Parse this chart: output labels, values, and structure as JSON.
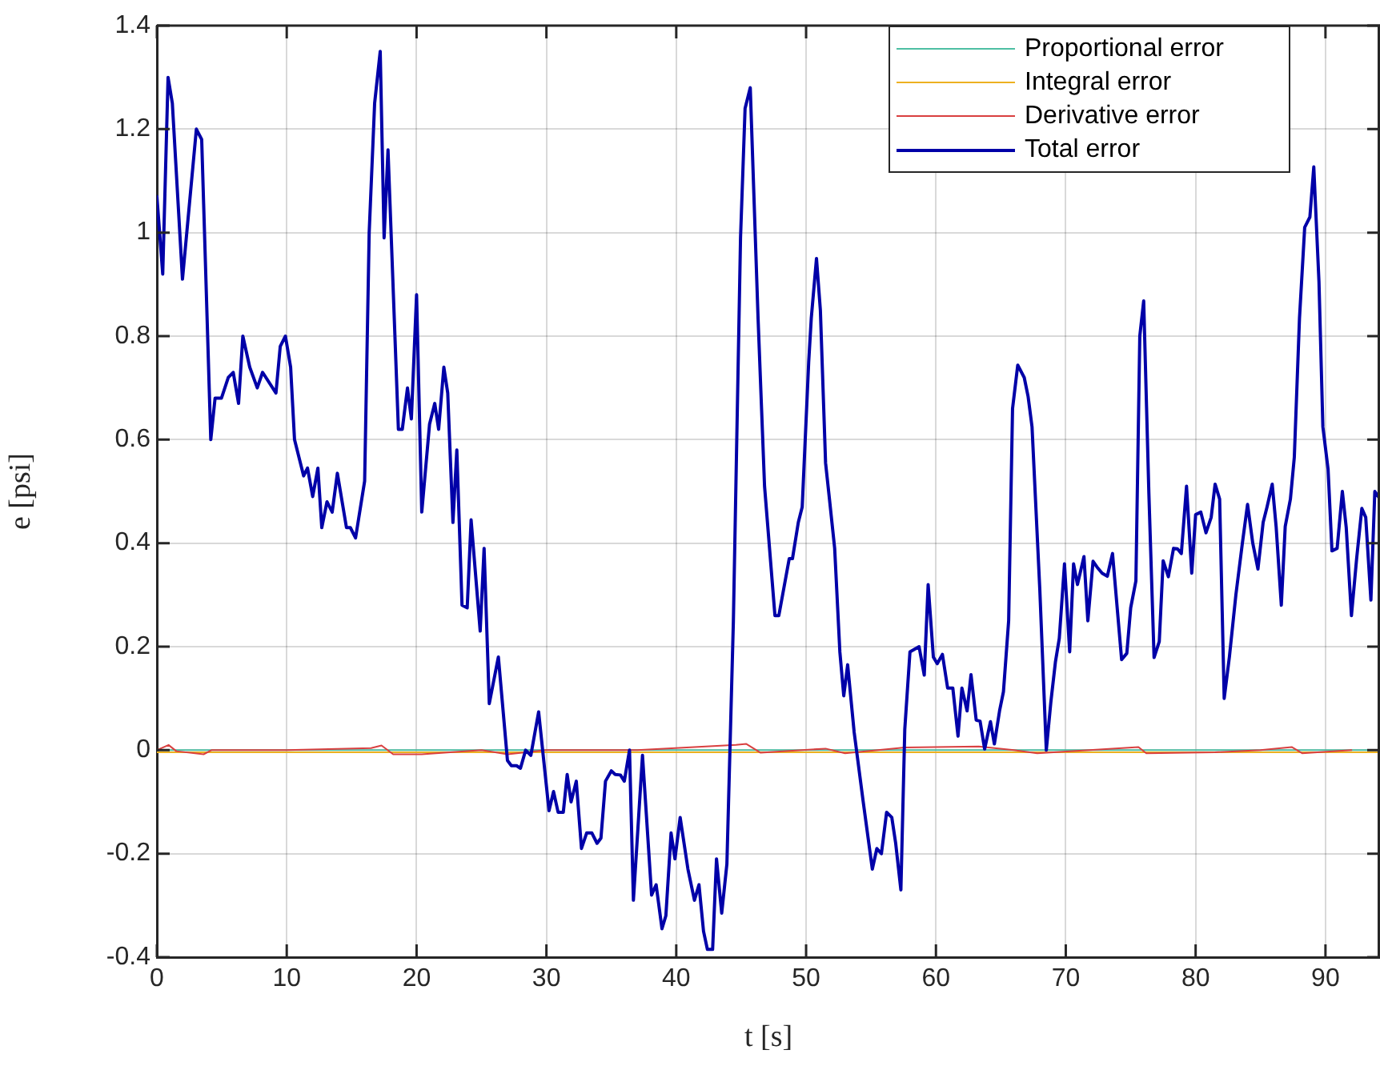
{
  "chart_data": {
    "type": "line",
    "xlabel": "t [s]",
    "ylabel": "e [psi]",
    "xlim": [
      0,
      94.2
    ],
    "xticks": [
      0,
      10,
      20,
      30,
      40,
      50,
      60,
      70,
      80,
      90
    ],
    "ylim": [
      -0.4,
      1.4
    ],
    "yticks": [
      -0.4,
      -0.2,
      0,
      0.2,
      0.4,
      0.6,
      0.8,
      1,
      1.2,
      1.4
    ],
    "grid": true,
    "legend": "top right",
    "marker": "none",
    "line_style": "solid",
    "series": [
      {
        "name": "Proportional error",
        "color": "#4dbfa3",
        "x": [
          0,
          10,
          20,
          30,
          40,
          50,
          60,
          70,
          80,
          90,
          94.2
        ],
        "values": [
          0,
          0,
          0,
          0,
          0,
          0,
          0,
          0,
          0,
          0,
          0
        ]
      },
      {
        "name": "Integral error",
        "color": "#edb120",
        "x": [
          0,
          10,
          20,
          30,
          40,
          50,
          60,
          70,
          80,
          90,
          94.2
        ],
        "values": [
          -0.004,
          -0.004,
          -0.004,
          -0.004,
          -0.004,
          -0.004,
          -0.004,
          -0.004,
          -0.004,
          -0.004,
          -0.004
        ]
      },
      {
        "name": "Derivative error",
        "color": "#d94040",
        "x": [
          0,
          0.9,
          1.5,
          3.6,
          4.2,
          10,
          16.5,
          17.3,
          18.2,
          20.4,
          25,
          27,
          30,
          37,
          44.6,
          45.4,
          46.5,
          51.5,
          53,
          57.6,
          63.3,
          66,
          67.8,
          75.6,
          76.2,
          81.5,
          85,
          87.4,
          88.2,
          92
        ],
        "values": [
          0,
          0.01,
          -0.002,
          -0.008,
          0,
          0,
          0.004,
          0.009,
          -0.008,
          -0.008,
          0,
          -0.008,
          0,
          0,
          0.01,
          0.012,
          -0.005,
          0.003,
          -0.006,
          0.005,
          0.007,
          0,
          -0.006,
          0.006,
          -0.006,
          -0.004,
          0,
          0.006,
          -0.006,
          0
        ]
      },
      {
        "name": "Total error",
        "color": "#0000a8",
        "x": [
          0,
          0.45,
          0.86,
          1.19,
          1.97,
          3.04,
          3.45,
          4.15,
          4.48,
          4.97,
          5.5,
          5.88,
          6.29,
          6.62,
          7.15,
          7.73,
          8.14,
          9.17,
          9.5,
          9.9,
          10.3,
          10.6,
          11.3,
          11.6,
          12.0,
          12.4,
          12.7,
          13.1,
          13.5,
          13.9,
          14.6,
          14.9,
          15.3,
          16.0,
          16.35,
          16.77,
          17.2,
          17.5,
          17.8,
          18.6,
          18.9,
          19.3,
          19.6,
          20.0,
          20.4,
          21.0,
          21.4,
          21.7,
          22.1,
          22.4,
          22.8,
          23.1,
          23.5,
          23.9,
          24.2,
          24.9,
          25.2,
          25.6,
          26.3,
          27.0,
          27.3,
          27.7,
          28.0,
          28.4,
          28.8,
          29.4,
          30.2,
          30.55,
          30.9,
          31.3,
          31.6,
          31.9,
          32.3,
          32.7,
          33.1,
          33.5,
          33.9,
          34.2,
          34.55,
          35.0,
          35.3,
          35.7,
          36.0,
          36.4,
          36.7,
          37.4,
          38.1,
          38.45,
          38.9,
          39.2,
          39.6,
          39.9,
          40.3,
          40.9,
          41.4,
          41.75,
          42.1,
          42.4,
          42.8,
          43.1,
          43.5,
          43.9,
          44.4,
          44.95,
          45.3,
          45.7,
          46.3,
          46.8,
          47.6,
          47.9,
          48.7,
          48.95,
          49.4,
          49.7,
          50.2,
          50.4,
          50.8,
          51.1,
          51.5,
          51.8,
          52.2,
          52.6,
          52.9,
          53.2,
          53.7,
          54.4,
          55.1,
          55.45,
          55.8,
          56.2,
          56.6,
          56.9,
          57.3,
          57.6,
          58.0,
          58.7,
          59.1,
          59.4,
          59.8,
          60.1,
          60.5,
          60.9,
          61.3,
          61.7,
          62.0,
          62.4,
          62.7,
          63.1,
          63.4,
          63.75,
          64.2,
          64.5,
          64.9,
          65.2,
          65.6,
          65.9,
          66.3,
          66.8,
          67.1,
          67.4,
          68.0,
          68.5,
          68.85,
          69.2,
          69.5,
          69.9,
          70.3,
          70.6,
          70.9,
          71.4,
          71.7,
          72.1,
          72.4,
          72.8,
          73.2,
          73.6,
          74.3,
          74.7,
          75.0,
          75.4,
          75.7,
          76.0,
          76.4,
          76.8,
          77.2,
          77.5,
          77.9,
          78.3,
          78.6,
          78.9,
          79.3,
          79.7,
          80.0,
          80.4,
          80.8,
          81.2,
          81.5,
          81.85,
          82.2,
          82.6,
          83.1,
          83.6,
          84.0,
          84.4,
          84.8,
          85.2,
          85.5,
          85.9,
          86.2,
          86.6,
          86.9,
          87.3,
          87.6,
          88.0,
          88.4,
          88.8,
          89.1,
          89.5,
          89.8,
          90.2,
          90.5,
          90.9,
          91.3,
          91.6,
          92.0,
          92.4,
          92.8,
          93.1,
          93.5,
          93.8,
          94.2
        ],
        "values": [
          1.07,
          0.92,
          1.3,
          1.25,
          0.91,
          1.2,
          1.18,
          0.6,
          0.68,
          0.68,
          0.72,
          0.73,
          0.67,
          0.8,
          0.74,
          0.7,
          0.73,
          0.69,
          0.78,
          0.8,
          0.74,
          0.6,
          0.53,
          0.545,
          0.49,
          0.545,
          0.43,
          0.48,
          0.46,
          0.535,
          0.43,
          0.43,
          0.41,
          0.52,
          1.0,
          1.25,
          1.35,
          0.99,
          1.16,
          0.62,
          0.62,
          0.7,
          0.64,
          0.88,
          0.46,
          0.63,
          0.67,
          0.62,
          0.74,
          0.69,
          0.44,
          0.58,
          0.28,
          0.275,
          0.445,
          0.23,
          0.39,
          0.09,
          0.18,
          -0.02,
          -0.03,
          -0.03,
          -0.035,
          0.0,
          -0.01,
          0.074,
          -0.117,
          -0.08,
          -0.12,
          -0.12,
          -0.047,
          -0.1,
          -0.06,
          -0.19,
          -0.16,
          -0.16,
          -0.18,
          -0.17,
          -0.06,
          -0.04,
          -0.047,
          -0.048,
          -0.06,
          0.0,
          -0.29,
          -0.01,
          -0.28,
          -0.26,
          -0.345,
          -0.32,
          -0.16,
          -0.21,
          -0.13,
          -0.23,
          -0.29,
          -0.26,
          -0.35,
          -0.385,
          -0.385,
          -0.21,
          -0.315,
          -0.22,
          0.25,
          0.99,
          1.24,
          1.28,
          0.835,
          0.51,
          0.26,
          0.26,
          0.37,
          0.37,
          0.44,
          0.47,
          0.75,
          0.835,
          0.95,
          0.85,
          0.555,
          0.485,
          0.39,
          0.19,
          0.105,
          0.165,
          0.035,
          -0.1,
          -0.23,
          -0.19,
          -0.2,
          -0.12,
          -0.13,
          -0.18,
          -0.27,
          0.04,
          0.19,
          0.2,
          0.145,
          0.32,
          0.18,
          0.167,
          0.185,
          0.12,
          0.12,
          0.027,
          0.12,
          0.076,
          0.146,
          0.058,
          0.056,
          0.002,
          0.055,
          0.012,
          0.076,
          0.113,
          0.25,
          0.66,
          0.744,
          0.72,
          0.683,
          0.625,
          0.31,
          0.0,
          0.093,
          0.17,
          0.216,
          0.36,
          0.19,
          0.36,
          0.32,
          0.374,
          0.25,
          0.365,
          0.354,
          0.342,
          0.336,
          0.38,
          0.175,
          0.187,
          0.275,
          0.327,
          0.8,
          0.868,
          0.496,
          0.179,
          0.21,
          0.366,
          0.335,
          0.39,
          0.389,
          0.38,
          0.51,
          0.342,
          0.455,
          0.46,
          0.42,
          0.45,
          0.514,
          0.485,
          0.1,
          0.18,
          0.3,
          0.4,
          0.475,
          0.4,
          0.35,
          0.44,
          0.47,
          0.514,
          0.432,
          0.28,
          0.432,
          0.485,
          0.566,
          0.835,
          1.01,
          1.03,
          1.127,
          0.905,
          0.625,
          0.543,
          0.385,
          0.39,
          0.5,
          0.43,
          0.26,
          0.37,
          0.467,
          0.45,
          0.29,
          0.5,
          0.485
        ]
      }
    ]
  }
}
